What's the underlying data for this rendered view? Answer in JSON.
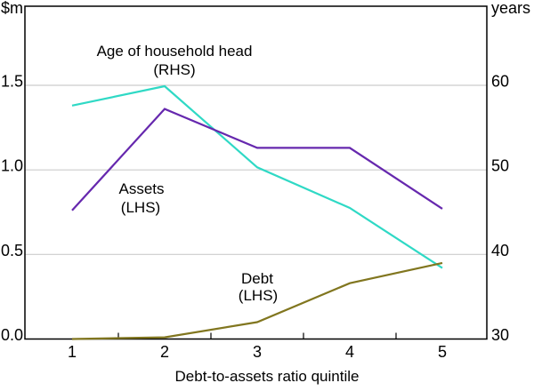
{
  "chart_data": {
    "type": "line",
    "title": "",
    "xlabel": "Debt-to-assets ratio quintile",
    "categories": [
      "1",
      "2",
      "3",
      "4",
      "5"
    ],
    "left_axis": {
      "unit": "$m",
      "ticks": [
        "0.0",
        "0.5",
        "1.0",
        "1.5"
      ],
      "range": [
        0,
        1.97
      ]
    },
    "right_axis": {
      "unit": "years",
      "ticks": [
        "30",
        "40",
        "50",
        "60"
      ],
      "range": [
        30,
        69.5
      ]
    },
    "grid": true,
    "legend": "inline series labels",
    "colors": {
      "grid": "#cccccc",
      "axis": "#000000",
      "background": "#ffffff"
    },
    "series": [
      {
        "name": "Age of household head",
        "axis": "right",
        "color": "#2fd9c5",
        "values": [
          57.6,
          59.9,
          50.3,
          45.5,
          38.4
        ],
        "label": {
          "lines": [
            "Age of household head",
            "(RHS)"
          ]
        }
      },
      {
        "name": "Assets",
        "axis": "left",
        "color": "#6628ae",
        "values": [
          0.76,
          1.36,
          1.13,
          1.13,
          0.77
        ],
        "label": {
          "lines": [
            "Assets",
            "(LHS)"
          ]
        }
      },
      {
        "name": "Debt",
        "axis": "left",
        "color": "#81761f",
        "values": [
          0.0,
          0.01,
          0.1,
          0.33,
          0.45
        ],
        "label": {
          "lines": [
            "Debt",
            "(LHS)"
          ]
        }
      }
    ]
  }
}
